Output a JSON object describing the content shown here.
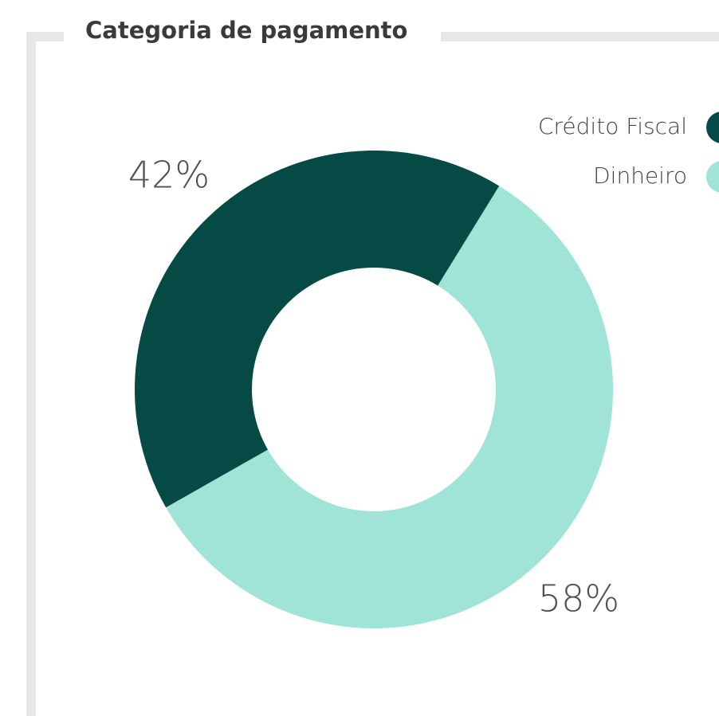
{
  "chart_data": {
    "type": "pie",
    "title": "Categoria de pagamento",
    "categories": [
      "Crédito Fiscal",
      "Dinheiro"
    ],
    "values": [
      42,
      58
    ],
    "value_labels": [
      "42%",
      "58%"
    ],
    "colors": [
      "#054a44",
      "#a0e4d7"
    ],
    "donut": true
  }
}
